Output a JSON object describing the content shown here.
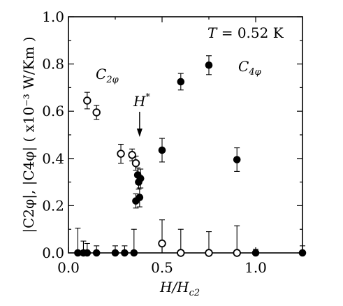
{
  "chart_data": {
    "type": "scatter",
    "title": "",
    "xlabel": {
      "main": "H/H",
      "sub": "c2"
    },
    "ylabel": {
      "text": "|C2φ|, |C4φ| ( x10⁻³ W/Km )"
    },
    "xlim": [
      0.0,
      1.25
    ],
    "ylim": [
      0.0,
      1.0
    ],
    "x_ticks": [
      0.0,
      0.5,
      1.0
    ],
    "x_tick_labels": [
      "0.0",
      "0.5",
      "1.0"
    ],
    "y_ticks": [
      0.0,
      0.2,
      0.4,
      0.6,
      0.8,
      1.0
    ],
    "y_tick_labels": [
      "0.0",
      "0.2",
      "0.4",
      "0.6",
      "0.8",
      "1.0"
    ],
    "grid": false,
    "temperature_label": {
      "prefix": "T",
      "value": " = 0.52 K"
    },
    "h_star_label": {
      "main": "H",
      "sup": "*"
    },
    "h_star_x": 0.38,
    "series": [
      {
        "name": "C2φ",
        "label_main": "C",
        "label_sub": "2φ",
        "marker": "open-circle",
        "color": "#000000",
        "points": [
          {
            "x": 0.1,
            "y": 0.645,
            "err": 0.035
          },
          {
            "x": 0.15,
            "y": 0.595,
            "err": 0.03
          },
          {
            "x": 0.28,
            "y": 0.42,
            "err": 0.04
          },
          {
            "x": 0.34,
            "y": 0.415,
            "err": 0.025
          },
          {
            "x": 0.36,
            "y": 0.38,
            "err": 0.03
          },
          {
            "x": 0.5,
            "y": 0.04,
            "err": 0.1
          },
          {
            "x": 0.6,
            "y": 0.0,
            "err": 0.1
          },
          {
            "x": 0.75,
            "y": 0.0,
            "err": 0.09
          },
          {
            "x": 0.9,
            "y": 0.0,
            "err": 0.115
          }
        ]
      },
      {
        "name": "C4φ",
        "label_main": "C",
        "label_sub": "4φ",
        "marker": "filled-circle",
        "color": "#000000",
        "points": [
          {
            "x": 0.05,
            "y": 0.0,
            "err": 0.105
          },
          {
            "x": 0.08,
            "y": 0.0,
            "err": 0.05
          },
          {
            "x": 0.1,
            "y": 0.0,
            "err": 0.04
          },
          {
            "x": 0.15,
            "y": 0.0,
            "err": 0.03
          },
          {
            "x": 0.25,
            "y": 0.0,
            "err": 0.03
          },
          {
            "x": 0.3,
            "y": 0.0,
            "err": 0.03
          },
          {
            "x": 0.35,
            "y": 0.0,
            "err": 0.1
          },
          {
            "x": 0.36,
            "y": 0.22,
            "err": 0.03
          },
          {
            "x": 0.37,
            "y": 0.33,
            "err": 0.03
          },
          {
            "x": 0.375,
            "y": 0.3,
            "err": 0.03
          },
          {
            "x": 0.38,
            "y": 0.235,
            "err": 0.04
          },
          {
            "x": 0.385,
            "y": 0.315,
            "err": 0.04
          },
          {
            "x": 0.5,
            "y": 0.435,
            "err": 0.05
          },
          {
            "x": 0.6,
            "y": 0.725,
            "err": 0.035
          },
          {
            "x": 0.75,
            "y": 0.795,
            "err": 0.04
          },
          {
            "x": 0.9,
            "y": 0.395,
            "err": 0.05
          },
          {
            "x": 1.0,
            "y": 0.0,
            "err": 0.015
          },
          {
            "x": 1.25,
            "y": 0.0,
            "err": 0.03
          }
        ]
      }
    ]
  }
}
